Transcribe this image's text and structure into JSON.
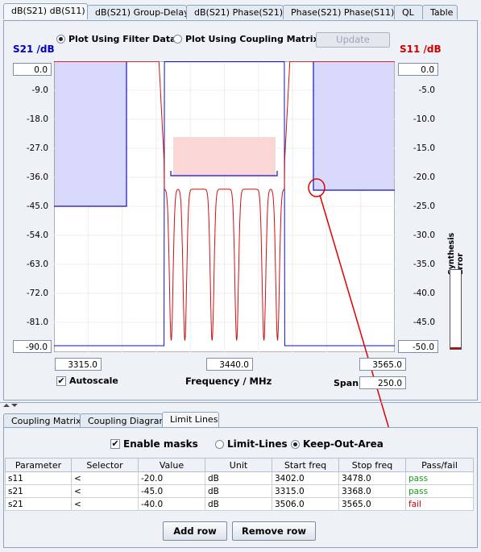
{
  "top_tabs": [
    {
      "label": "dB(S21) dB(S11)",
      "active": true
    },
    {
      "label": "dB(S21) Group-Delay",
      "active": false
    },
    {
      "label": "dB(S21) Phase(S21)",
      "active": false
    },
    {
      "label": "Phase(S21) Phase(S11)",
      "active": false
    },
    {
      "label": "QL",
      "active": false
    },
    {
      "label": "Table",
      "active": false
    }
  ],
  "plot_options": {
    "filter_data_label": "Plot Using Filter Data",
    "coupling_matrix_label": "Plot Using Coupling Matrix",
    "selected": "filter_data",
    "update_label": "Update"
  },
  "axes": {
    "left_title": "S21 /dB",
    "right_title": "S11 /dB",
    "left_top_value": "0.0",
    "left_bottom_value": "-90.0",
    "right_top_value": "0.0",
    "right_bottom_value": "-50.0",
    "left_ticks": [
      "-9.0",
      "-18.0",
      "-27.0",
      "-36.0",
      "-45.0",
      "-54.0",
      "-63.0",
      "-72.0",
      "-81.0"
    ],
    "right_ticks": [
      "-5.0",
      "-10.0",
      "-15.0",
      "-20.0",
      "-25.0",
      "-30.0",
      "-35.0",
      "-40.0",
      "-45.0"
    ],
    "freq_start": "3315.0",
    "freq_center": "3440.0",
    "freq_stop": "3565.0",
    "xlabel": "Frequency / MHz",
    "span_label": "Span",
    "span_value": "250.0",
    "autoscale_label": "Autoscale",
    "autoscale_checked": true,
    "synthesis_error_label": "Synthesis Error"
  },
  "colors": {
    "s21": "#1010c0",
    "s11": "#d01010",
    "mask_fill": "#d8d8fb",
    "passband_fill": "#fbd6d6",
    "annot": "#e00000"
  },
  "bottom_tabs": [
    {
      "label": "Coupling Matrix",
      "active": false
    },
    {
      "label": "Coupling Diagram",
      "active": false
    },
    {
      "label": "Limit Lines",
      "active": true
    }
  ],
  "limits": {
    "enable_masks_label": "Enable masks",
    "enable_masks_checked": true,
    "limit_lines_label": "Limit-Lines",
    "keep_out_label": "Keep-Out-Area",
    "selected": "keep_out",
    "columns": [
      "Parameter",
      "Selector",
      "Value",
      "Unit",
      "Start freq",
      "Stop freq",
      "Pass/fail"
    ],
    "rows": [
      {
        "parameter": "s11",
        "selector": "<",
        "value": "-20.0",
        "unit": "dB",
        "start": "3402.0",
        "stop": "3478.0",
        "result": "pass"
      },
      {
        "parameter": "s21",
        "selector": "<",
        "value": "-45.0",
        "unit": "dB",
        "start": "3315.0",
        "stop": "3368.0",
        "result": "pass"
      },
      {
        "parameter": "s21",
        "selector": "<",
        "value": "-40.0",
        "unit": "dB",
        "start": "3506.0",
        "stop": "3565.0",
        "result": "fail"
      }
    ],
    "add_row_label": "Add row",
    "remove_row_label": "Remove row"
  }
}
